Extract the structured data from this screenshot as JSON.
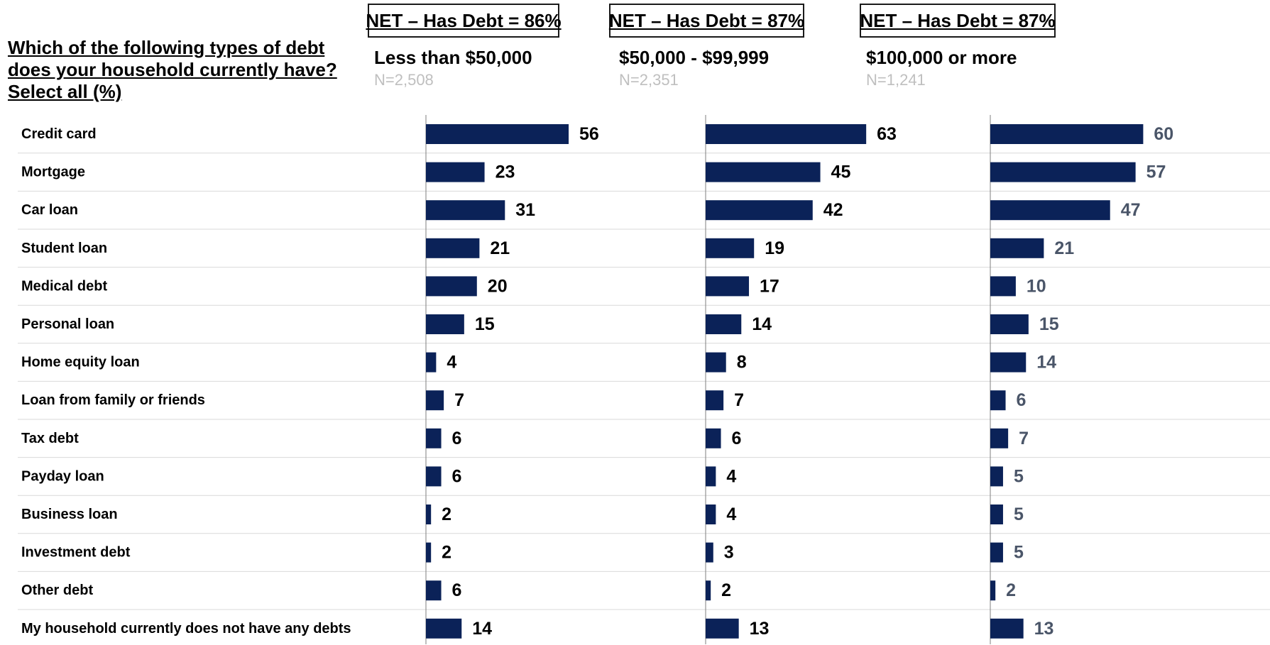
{
  "question": "Which of the following types of debt does your household currently have? Select all (%)",
  "colors": {
    "bar": "#0b2258",
    "value_black": "#000000",
    "value_gray": "#4a5568",
    "n_text": "#bfbfbf",
    "row_line": "#d9d9d9",
    "axis_line": "#7f7f7f"
  },
  "columns": [
    {
      "net": "NET – Has Debt = 86%",
      "label": "Less than $50,000",
      "n": "N=2,508"
    },
    {
      "net": "NET – Has Debt = 87%",
      "label": "$50,000 - $99,999",
      "n": "N=2,351"
    },
    {
      "net": "NET – Has Debt = 87%",
      "label": "$100,000 or more",
      "n": "N=1,241"
    }
  ],
  "chart_data": {
    "type": "bar",
    "orientation": "horizontal",
    "categories": [
      "Credit card",
      "Mortgage",
      "Car loan",
      "Student loan",
      "Medical debt",
      "Personal loan",
      "Home equity loan",
      "Loan from family or friends",
      "Tax debt",
      "Payday loan",
      "Business loan",
      "Investment debt",
      "Other debt",
      "My household currently does not have any debts"
    ],
    "series": [
      {
        "name": "Less than $50,000",
        "values": [
          56,
          23,
          31,
          21,
          20,
          15,
          4,
          7,
          6,
          6,
          2,
          2,
          6,
          14
        ]
      },
      {
        "name": "$50,000 - $99,999",
        "values": [
          63,
          45,
          42,
          19,
          17,
          14,
          8,
          7,
          6,
          4,
          4,
          3,
          2,
          13
        ]
      },
      {
        "name": "$100,000 or more",
        "values": [
          60,
          57,
          47,
          21,
          10,
          15,
          14,
          6,
          7,
          5,
          5,
          5,
          2,
          13
        ]
      }
    ],
    "xlim": [
      0,
      100
    ],
    "grid": false,
    "legend": "none"
  }
}
